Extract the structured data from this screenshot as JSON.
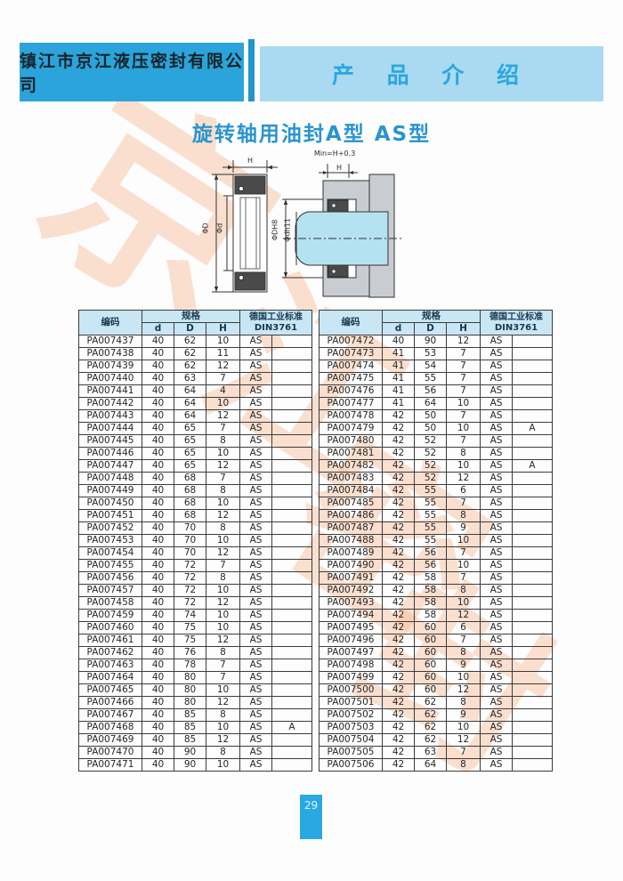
{
  "header": {
    "company": "镇江市京江液压密封有限公司",
    "section": "产 品 介 绍"
  },
  "title": "旋转轴用油封A型  AS型",
  "diagram": {
    "min_label": "Min=H+0.3",
    "h_label_seal": "H",
    "h_label_assembly": "H",
    "phi_D": "ΦD",
    "phi_d": "Φd",
    "phi_DH8": "ΦDH8",
    "phi_dh11": "Φdh11"
  },
  "table_header": {
    "code": "编码",
    "spec": "规格",
    "col_d": "d",
    "col_D": "D",
    "col_H": "H",
    "din_std": "德国工业标准",
    "din_num": "DIN3761"
  },
  "left_rows": [
    [
      "PA007437",
      "40",
      "62",
      "10",
      "AS",
      ""
    ],
    [
      "PA007438",
      "40",
      "62",
      "11",
      "AS",
      ""
    ],
    [
      "PA007439",
      "40",
      "62",
      "12",
      "AS",
      ""
    ],
    [
      "PA007440",
      "40",
      "63",
      "7",
      "AS",
      ""
    ],
    [
      "PA007441",
      "40",
      "64",
      "4",
      "AS",
      ""
    ],
    [
      "PA007442",
      "40",
      "64",
      "10",
      "AS",
      ""
    ],
    [
      "PA007443",
      "40",
      "64",
      "12",
      "AS",
      ""
    ],
    [
      "PA007444",
      "40",
      "65",
      "7",
      "AS",
      ""
    ],
    [
      "PA007445",
      "40",
      "65",
      "8",
      "AS",
      ""
    ],
    [
      "PA007446",
      "40",
      "65",
      "10",
      "AS",
      ""
    ],
    [
      "PA007447",
      "40",
      "65",
      "12",
      "AS",
      ""
    ],
    [
      "PA007448",
      "40",
      "68",
      "7",
      "AS",
      ""
    ],
    [
      "PA007449",
      "40",
      "68",
      "8",
      "AS",
      ""
    ],
    [
      "PA007450",
      "40",
      "68",
      "10",
      "AS",
      ""
    ],
    [
      "PA007451",
      "40",
      "68",
      "12",
      "AS",
      ""
    ],
    [
      "PA007452",
      "40",
      "70",
      "8",
      "AS",
      ""
    ],
    [
      "PA007453",
      "40",
      "70",
      "10",
      "AS",
      ""
    ],
    [
      "PA007454",
      "40",
      "70",
      "12",
      "AS",
      ""
    ],
    [
      "PA007455",
      "40",
      "72",
      "7",
      "AS",
      ""
    ],
    [
      "PA007456",
      "40",
      "72",
      "8",
      "AS",
      ""
    ],
    [
      "PA007457",
      "40",
      "72",
      "10",
      "AS",
      ""
    ],
    [
      "PA007458",
      "40",
      "72",
      "12",
      "AS",
      ""
    ],
    [
      "PA007459",
      "40",
      "74",
      "10",
      "AS",
      ""
    ],
    [
      "PA007460",
      "40",
      "75",
      "10",
      "AS",
      ""
    ],
    [
      "PA007461",
      "40",
      "75",
      "12",
      "AS",
      ""
    ],
    [
      "PA007462",
      "40",
      "76",
      "8",
      "AS",
      ""
    ],
    [
      "PA007463",
      "40",
      "78",
      "7",
      "AS",
      ""
    ],
    [
      "PA007464",
      "40",
      "80",
      "7",
      "AS",
      ""
    ],
    [
      "PA007465",
      "40",
      "80",
      "10",
      "AS",
      ""
    ],
    [
      "PA007466",
      "40",
      "80",
      "12",
      "AS",
      ""
    ],
    [
      "PA007467",
      "40",
      "85",
      "8",
      "AS",
      ""
    ],
    [
      "PA007468",
      "40",
      "85",
      "10",
      "AS",
      "A"
    ],
    [
      "PA007469",
      "40",
      "85",
      "12",
      "AS",
      ""
    ],
    [
      "PA007470",
      "40",
      "90",
      "8",
      "AS",
      ""
    ],
    [
      "PA007471",
      "40",
      "90",
      "10",
      "AS",
      ""
    ]
  ],
  "right_rows": [
    [
      "PA007472",
      "40",
      "90",
      "12",
      "AS",
      ""
    ],
    [
      "PA007473",
      "41",
      "53",
      "7",
      "AS",
      ""
    ],
    [
      "PA007474",
      "41",
      "54",
      "7",
      "AS",
      ""
    ],
    [
      "PA007475",
      "41",
      "55",
      "7",
      "AS",
      ""
    ],
    [
      "PA007476",
      "41",
      "56",
      "7",
      "AS",
      ""
    ],
    [
      "PA007477",
      "41",
      "64",
      "10",
      "AS",
      ""
    ],
    [
      "PA007478",
      "42",
      "50",
      "7",
      "AS",
      ""
    ],
    [
      "PA007479",
      "42",
      "50",
      "10",
      "AS",
      "A"
    ],
    [
      "PA007480",
      "42",
      "52",
      "7",
      "AS",
      ""
    ],
    [
      "PA007481",
      "42",
      "52",
      "8",
      "AS",
      ""
    ],
    [
      "PA007482",
      "42",
      "52",
      "10",
      "AS",
      "A"
    ],
    [
      "PA007483",
      "42",
      "52",
      "12",
      "AS",
      ""
    ],
    [
      "PA007484",
      "42",
      "55",
      "6",
      "AS",
      ""
    ],
    [
      "PA007485",
      "42",
      "55",
      "7",
      "AS",
      ""
    ],
    [
      "PA007486",
      "42",
      "55",
      "8",
      "AS",
      ""
    ],
    [
      "PA007487",
      "42",
      "55",
      "9",
      "AS",
      ""
    ],
    [
      "PA007488",
      "42",
      "55",
      "10",
      "AS",
      ""
    ],
    [
      "PA007489",
      "42",
      "56",
      "7",
      "AS",
      ""
    ],
    [
      "PA007490",
      "42",
      "56",
      "10",
      "AS",
      ""
    ],
    [
      "PA007491",
      "42",
      "58",
      "7",
      "AS",
      ""
    ],
    [
      "PA007492",
      "42",
      "58",
      "8",
      "AS",
      ""
    ],
    [
      "PA007493",
      "42",
      "58",
      "10",
      "AS",
      ""
    ],
    [
      "PA007494",
      "42",
      "58",
      "12",
      "AS",
      ""
    ],
    [
      "PA007495",
      "42",
      "60",
      "6",
      "AS",
      ""
    ],
    [
      "PA007496",
      "42",
      "60",
      "7",
      "AS",
      ""
    ],
    [
      "PA007497",
      "42",
      "60",
      "8",
      "AS",
      ""
    ],
    [
      "PA007498",
      "42",
      "60",
      "9",
      "AS",
      ""
    ],
    [
      "PA007499",
      "42",
      "60",
      "10",
      "AS",
      ""
    ],
    [
      "PA007500",
      "42",
      "60",
      "12",
      "AS",
      ""
    ],
    [
      "PA007501",
      "42",
      "62",
      "8",
      "AS",
      ""
    ],
    [
      "PA007502",
      "42",
      "62",
      "9",
      "AS",
      ""
    ],
    [
      "PA007503",
      "42",
      "62",
      "10",
      "AS",
      ""
    ],
    [
      "PA007504",
      "42",
      "62",
      "12",
      "AS",
      ""
    ],
    [
      "PA007505",
      "42",
      "63",
      "7",
      "AS",
      ""
    ],
    [
      "PA007506",
      "42",
      "64",
      "8",
      "AS",
      ""
    ]
  ],
  "watermark_chars": [
    "京",
    "江",
    "密",
    "封"
  ],
  "page_number": "29",
  "colors": {
    "header_block": "#2aa4da",
    "header_stripe": "#2196cd",
    "header_light": "#a9daf2",
    "section_text": "#2aa6e0",
    "title_blue": "#2a94cf",
    "table_header_bg": "#c9e6f4",
    "watermark": "#f6b68e",
    "page_tab": "#29a9e2",
    "shaft_fill": "#b5e2f1",
    "housing_fill": "#c9cdd1",
    "seal_dark": "#4a4a4a"
  }
}
